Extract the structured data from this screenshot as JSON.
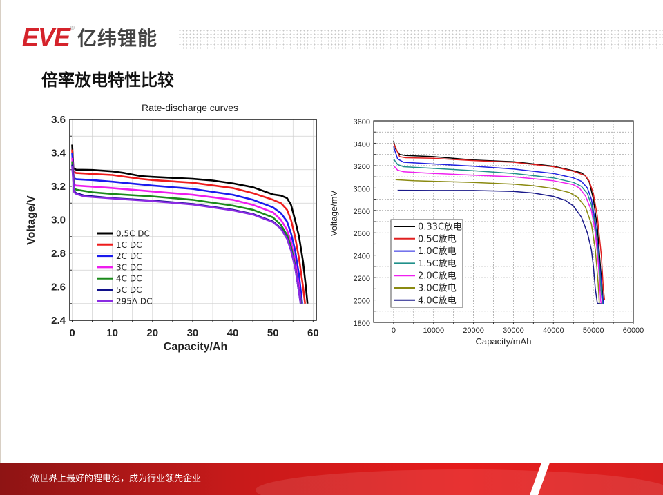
{
  "header": {
    "logo_text": "EVE",
    "logo_registered": "®",
    "company_name": "亿纬锂能",
    "brand_color": "#d5232b"
  },
  "page_title": "倍率放电特性比较",
  "footer": {
    "slogan": "做世界上最好的锂电池，成为行业领先企业",
    "color": "#e61b1b"
  },
  "chart_data": [
    {
      "type": "line",
      "title": "Rate-discharge curves",
      "xlabel": "Capacity/Ah",
      "ylabel": "Voltage/V",
      "xlim": [
        -0.6,
        60.8
      ],
      "ylim": [
        2.4,
        3.6
      ],
      "grid": true,
      "legend_position": "bottom-left",
      "xticks": [
        "0",
        "10",
        "20",
        "30",
        "40",
        "50",
        "60"
      ],
      "yticks": [
        "2.4",
        "2.6",
        "2.8",
        "3.0",
        "3.2",
        "3.4",
        "3.6"
      ],
      "series": [
        {
          "name": "0.5C DC",
          "color": "#000000",
          "points": [
            [
              0,
              3.45
            ],
            [
              0.3,
              3.31
            ],
            [
              1,
              3.3
            ],
            [
              5,
              3.298
            ],
            [
              10,
              3.29
            ],
            [
              13,
              3.28
            ],
            [
              17,
              3.262
            ],
            [
              20,
              3.257
            ],
            [
              30,
              3.245
            ],
            [
              35,
              3.235
            ],
            [
              40,
              3.218
            ],
            [
              45,
              3.195
            ],
            [
              50,
              3.152
            ],
            [
              52,
              3.145
            ],
            [
              53.5,
              3.13
            ],
            [
              54.5,
              3.09
            ],
            [
              55.5,
              3.0
            ],
            [
              56.5,
              2.9
            ],
            [
              57.5,
              2.75
            ],
            [
              58.2,
              2.6
            ],
            [
              58.6,
              2.5
            ]
          ]
        },
        {
          "name": "1C DC",
          "color": "#ee1c1c",
          "points": [
            [
              0,
              3.42
            ],
            [
              0.3,
              3.29
            ],
            [
              1,
              3.28
            ],
            [
              10,
              3.268
            ],
            [
              17,
              3.245
            ],
            [
              20,
              3.238
            ],
            [
              30,
              3.222
            ],
            [
              40,
              3.19
            ],
            [
              45,
              3.16
            ],
            [
              50,
              3.12
            ],
            [
              52,
              3.1
            ],
            [
              53.5,
              3.06
            ],
            [
              54.5,
              3.0
            ],
            [
              55.5,
              2.9
            ],
            [
              56.5,
              2.77
            ],
            [
              57.5,
              2.6
            ],
            [
              58,
              2.5
            ]
          ]
        },
        {
          "name": "2C DC",
          "color": "#1a1aee",
          "points": [
            [
              0,
              3.4
            ],
            [
              0.4,
              3.25
            ],
            [
              1,
              3.243
            ],
            [
              5,
              3.238
            ],
            [
              10,
              3.228
            ],
            [
              20,
              3.205
            ],
            [
              30,
              3.185
            ],
            [
              40,
              3.15
            ],
            [
              45,
              3.12
            ],
            [
              50,
              3.075
            ],
            [
              52,
              3.04
            ],
            [
              53.5,
              2.99
            ],
            [
              54.5,
              2.92
            ],
            [
              55.5,
              2.82
            ],
            [
              56.5,
              2.67
            ],
            [
              57.3,
              2.5
            ]
          ]
        },
        {
          "name": "3C DC",
          "color": "#ee1cee",
          "points": [
            [
              0,
              3.37
            ],
            [
              0.5,
              3.21
            ],
            [
              1,
              3.205
            ],
            [
              10,
              3.19
            ],
            [
              20,
              3.17
            ],
            [
              30,
              3.15
            ],
            [
              40,
              3.12
            ],
            [
              45,
              3.09
            ],
            [
              50,
              3.045
            ],
            [
              52,
              3.0
            ],
            [
              53.5,
              2.94
            ],
            [
              54.5,
              2.87
            ],
            [
              55.5,
              2.76
            ],
            [
              56.5,
              2.6
            ],
            [
              57,
              2.5
            ]
          ]
        },
        {
          "name": "4C DC",
          "color": "#1a8a1a",
          "points": [
            [
              0,
              3.35
            ],
            [
              0.5,
              3.19
            ],
            [
              1,
              3.18
            ],
            [
              5,
              3.165
            ],
            [
              10,
              3.155
            ],
            [
              20,
              3.14
            ],
            [
              30,
              3.12
            ],
            [
              40,
              3.085
            ],
            [
              45,
              3.06
            ],
            [
              50,
              3.015
            ],
            [
              52,
              2.97
            ],
            [
              53.5,
              2.91
            ],
            [
              54.5,
              2.84
            ],
            [
              55.5,
              2.73
            ],
            [
              56.3,
              2.6
            ],
            [
              57,
              2.5
            ]
          ]
        },
        {
          "name": "5C DC",
          "color": "#10108a",
          "points": [
            [
              0,
              3.33
            ],
            [
              0.5,
              3.17
            ],
            [
              1,
              3.16
            ],
            [
              3,
              3.145
            ],
            [
              10,
              3.13
            ],
            [
              20,
              3.115
            ],
            [
              30,
              3.095
            ],
            [
              40,
              3.06
            ],
            [
              45,
              3.035
            ],
            [
              50,
              2.99
            ],
            [
              52,
              2.95
            ],
            [
              53.5,
              2.89
            ],
            [
              54.5,
              2.82
            ],
            [
              55.5,
              2.72
            ],
            [
              56.3,
              2.6
            ],
            [
              56.9,
              2.5
            ]
          ]
        },
        {
          "name": "295A DC",
          "color": "#8a2be2",
          "points": [
            [
              0,
              3.32
            ],
            [
              0.5,
              3.165
            ],
            [
              1,
              3.155
            ],
            [
              3,
              3.14
            ],
            [
              10,
              3.128
            ],
            [
              20,
              3.112
            ],
            [
              30,
              3.092
            ],
            [
              40,
              3.057
            ],
            [
              45,
              3.032
            ],
            [
              50,
              2.987
            ],
            [
              52,
              2.947
            ],
            [
              53.5,
              2.887
            ],
            [
              54.5,
              2.817
            ],
            [
              55.5,
              2.717
            ],
            [
              56.3,
              2.6
            ],
            [
              56.9,
              2.5
            ]
          ]
        }
      ]
    },
    {
      "type": "line",
      "title": "",
      "xlabel": "Capacity/mAh",
      "ylabel": "Voltage/mV",
      "xlim": [
        -5000,
        60000
      ],
      "ylim": [
        1800,
        3600
      ],
      "grid": true,
      "grid_style": "dotted",
      "legend_position": "bottom-left",
      "xticks": [
        "0",
        "10000",
        "20000",
        "30000",
        "40000",
        "50000",
        "60000"
      ],
      "yticks": [
        "1800",
        "2000",
        "2200",
        "2400",
        "2600",
        "2800",
        "3000",
        "3200",
        "3400",
        "3600"
      ],
      "series": [
        {
          "name": "0.33C放电",
          "color": "#000000",
          "points": [
            [
              0,
              3420
            ],
            [
              500,
              3350
            ],
            [
              1500,
              3300
            ],
            [
              3000,
              3290
            ],
            [
              10000,
              3280
            ],
            [
              20000,
              3250
            ],
            [
              30000,
              3235
            ],
            [
              40000,
              3195
            ],
            [
              45000,
              3155
            ],
            [
              47000,
              3135
            ],
            [
              48000,
              3110
            ],
            [
              49000,
              3050
            ],
            [
              50000,
              2900
            ],
            [
              51000,
              2650
            ],
            [
              52000,
              2200
            ],
            [
              52500,
              1970
            ]
          ]
        },
        {
          "name": "0.5C放电",
          "color": "#e02020",
          "points": [
            [
              0,
              3400
            ],
            [
              1500,
              3280
            ],
            [
              3000,
              3270
            ],
            [
              10000,
              3265
            ],
            [
              20000,
              3245
            ],
            [
              30000,
              3230
            ],
            [
              40000,
              3190
            ],
            [
              45000,
              3150
            ],
            [
              48000,
              3110
            ],
            [
              49000,
              3060
            ],
            [
              50000,
              2950
            ],
            [
              51000,
              2750
            ],
            [
              52000,
              2400
            ],
            [
              52500,
              2100
            ],
            [
              52800,
              2000
            ]
          ]
        },
        {
          "name": "1.0C放电",
          "color": "#2020e0",
          "points": [
            [
              0,
              3370
            ],
            [
              1000,
              3260
            ],
            [
              2500,
              3230
            ],
            [
              10000,
              3215
            ],
            [
              20000,
              3195
            ],
            [
              30000,
              3170
            ],
            [
              40000,
              3130
            ],
            [
              45000,
              3090
            ],
            [
              47000,
              3060
            ],
            [
              48500,
              3000
            ],
            [
              49500,
              2900
            ],
            [
              50500,
              2700
            ],
            [
              51500,
              2350
            ],
            [
              52200,
              2050
            ],
            [
              52500,
              1965
            ]
          ]
        },
        {
          "name": "1.5C放电",
          "color": "#20908a",
          "points": [
            [
              0,
              3260
            ],
            [
              1000,
              3210
            ],
            [
              2500,
              3190
            ],
            [
              10000,
              3175
            ],
            [
              20000,
              3155
            ],
            [
              30000,
              3130
            ],
            [
              40000,
              3090
            ],
            [
              45000,
              3050
            ],
            [
              47000,
              3015
            ],
            [
              48500,
              2950
            ],
            [
              49500,
              2850
            ],
            [
              50500,
              2650
            ],
            [
              51500,
              2300
            ],
            [
              52000,
              2050
            ],
            [
              52300,
              1965
            ]
          ]
        },
        {
          "name": "2.0C放电",
          "color": "#f020f0",
          "points": [
            [
              0,
              3200
            ],
            [
              1000,
              3160
            ],
            [
              2500,
              3145
            ],
            [
              10000,
              3130
            ],
            [
              20000,
              3115
            ],
            [
              30000,
              3100
            ],
            [
              40000,
              3065
            ],
            [
              45000,
              3030
            ],
            [
              46500,
              3000
            ],
            [
              48000,
              2930
            ],
            [
              49500,
              2800
            ],
            [
              50500,
              2600
            ],
            [
              51300,
              2300
            ],
            [
              51800,
              2000
            ],
            [
              52000,
              1965
            ]
          ]
        },
        {
          "name": "3.0C放电",
          "color": "#8a8a10",
          "points": [
            [
              500,
              3075
            ],
            [
              5000,
              3065
            ],
            [
              10000,
              3060
            ],
            [
              20000,
              3050
            ],
            [
              30000,
              3035
            ],
            [
              35000,
              3020
            ],
            [
              40000,
              2995
            ],
            [
              44000,
              2960
            ],
            [
              46000,
              2920
            ],
            [
              48000,
              2830
            ],
            [
              49500,
              2680
            ],
            [
              50500,
              2450
            ],
            [
              51200,
              2150
            ],
            [
              51500,
              1970
            ]
          ]
        },
        {
          "name": "4.0C放电",
          "color": "#1a1a8a",
          "points": [
            [
              1000,
              2980
            ],
            [
              10000,
              2978
            ],
            [
              20000,
              2978
            ],
            [
              30000,
              2970
            ],
            [
              35000,
              2955
            ],
            [
              40000,
              2925
            ],
            [
              43000,
              2890
            ],
            [
              45000,
              2840
            ],
            [
              47000,
              2740
            ],
            [
              48500,
              2600
            ],
            [
              49500,
              2450
            ],
            [
              50000,
              2300
            ],
            [
              50500,
              2100
            ],
            [
              51000,
              1970
            ],
            [
              52000,
              1965
            ]
          ]
        }
      ]
    }
  ]
}
